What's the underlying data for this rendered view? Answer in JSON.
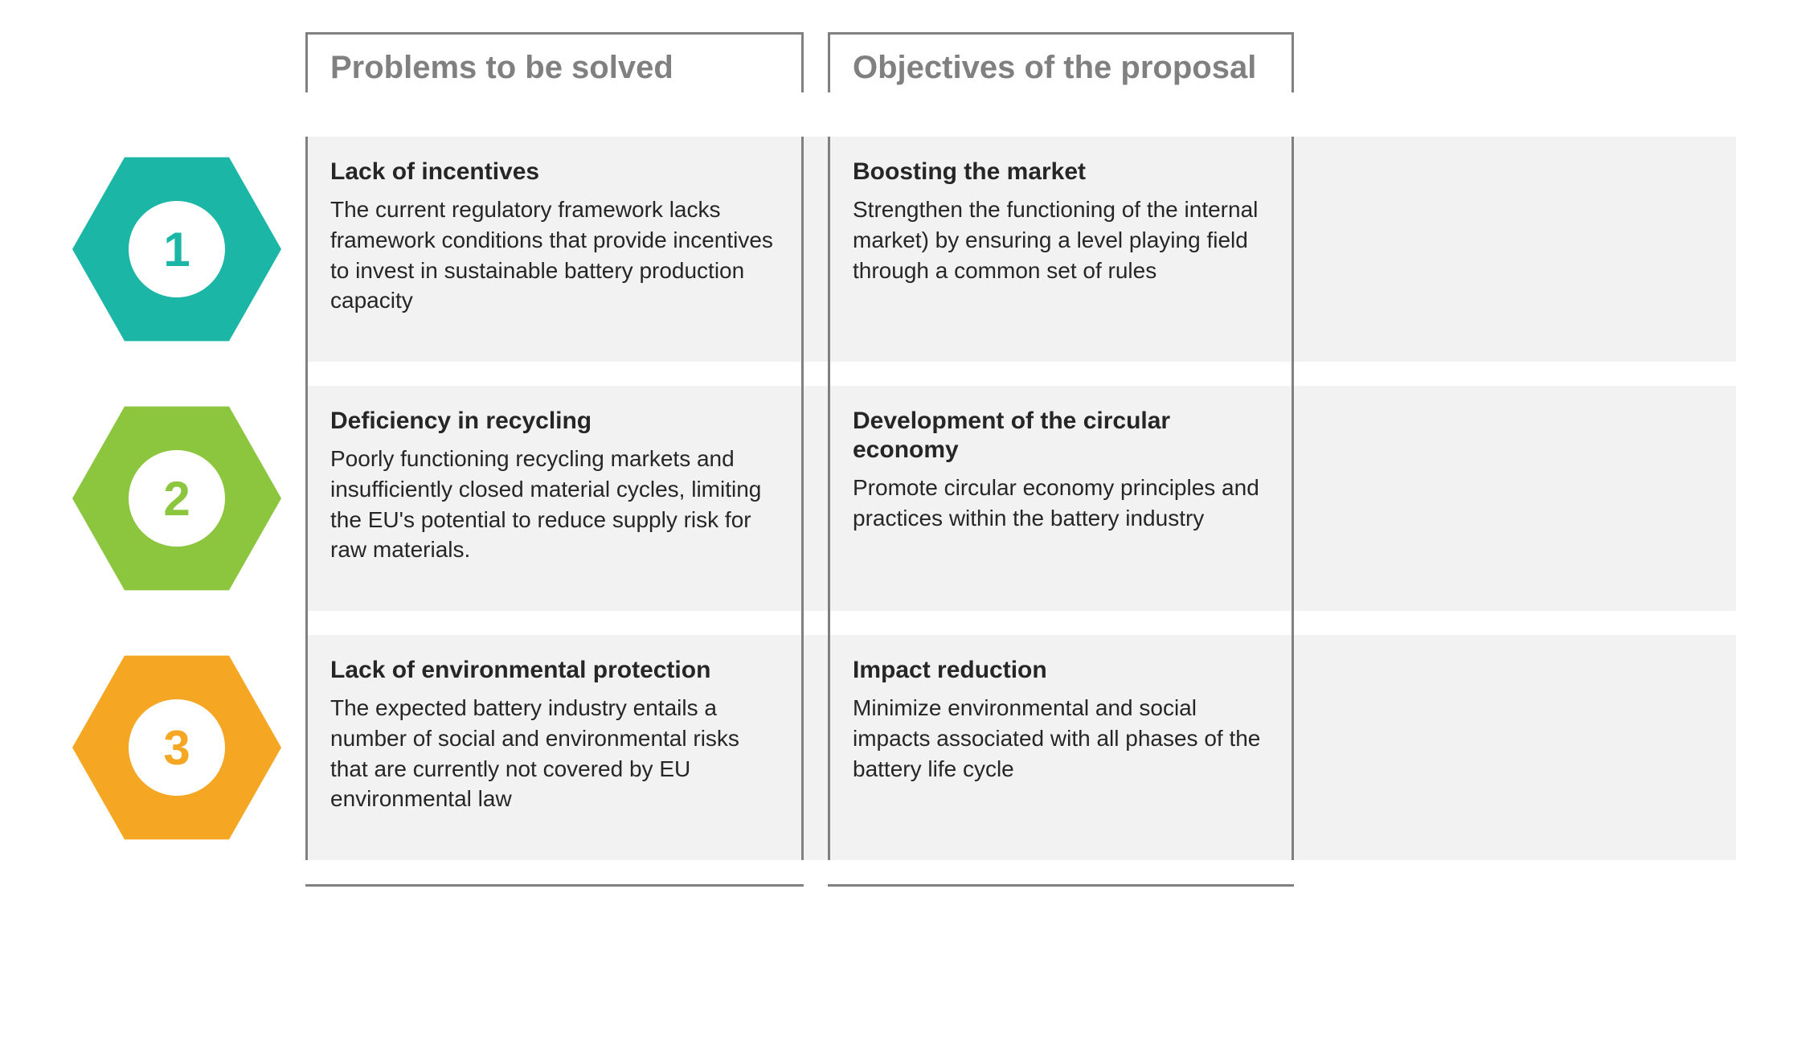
{
  "headers": {
    "problems": "Problems to be solved",
    "objectives": "Objectives of the proposal"
  },
  "layout": {
    "hex_col_width": 320,
    "problems_col_width": 620,
    "objectives_col_width": 580,
    "gap_width": 30,
    "row_min_height": 280,
    "hex_width": 260,
    "hex_height": 230,
    "circle_diameter": 120,
    "border_color": "#808080",
    "border_width": 3,
    "row_bg": "#f2f2f2",
    "page_bg": "#ffffff",
    "header_fontsize": 40,
    "title_fontsize": 30,
    "body_fontsize": 28,
    "number_fontsize": 60,
    "text_color": "#262626",
    "header_color": "#808080"
  },
  "rows": [
    {
      "number": "1",
      "hex_color": "#1bb6a5",
      "number_color": "#1bb6a5",
      "problem_title": "Lack of incentives",
      "problem_body": "The current regulatory framework lacks framework conditions that provide incentives to invest in sustainable battery production capacity",
      "objective_title": "Boosting the market",
      "objective_body": "Strengthen the functioning of the internal market) by ensuring a level playing field through a common set of rules"
    },
    {
      "number": "2",
      "hex_color": "#8cc63f",
      "number_color": "#8cc63f",
      "problem_title": "Deficiency in recycling",
      "problem_body": "Poorly functioning recycling markets and insufficiently closed material cycles, limiting the EU's potential to reduce supply risk for raw materials.",
      "objective_title": "Development of the circular economy",
      "objective_body": "Promote circular economy principles and practices within the battery industry"
    },
    {
      "number": "3",
      "hex_color": "#f5a623",
      "number_color": "#f5a623",
      "problem_title": "Lack of environmental protection",
      "problem_body": "The expected battery industry entails a number of social and environmental risks that are currently not covered by EU environmental law",
      "objective_title": "Impact reduction",
      "objective_body": "Minimize environmental and social impacts associated with all phases of the battery life cycle"
    }
  ]
}
